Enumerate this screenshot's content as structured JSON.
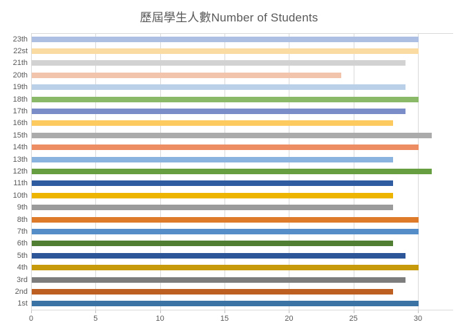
{
  "chart_data": {
    "type": "bar",
    "orientation": "horizontal",
    "title": "歷屆學生人數Number of Students",
    "categories": [
      "1st",
      "2nd",
      "3rd",
      "4th",
      "5th",
      "6th",
      "7th",
      "8th",
      "9th",
      "10th",
      "11th",
      "12th",
      "13th",
      "14th",
      "15th",
      "16th",
      "17th",
      "18th",
      "19th",
      "20th",
      "21th",
      "22st",
      "23th"
    ],
    "values": [
      30,
      28,
      29,
      30,
      29,
      28,
      30,
      30,
      28,
      28,
      28,
      31,
      28,
      30,
      31,
      28,
      29,
      30,
      29,
      24,
      29,
      30,
      30
    ],
    "bar_colors": [
      "#3C73A5",
      "#BE5F22",
      "#7D7D7D",
      "#C79A0B",
      "#2D5698",
      "#507E32",
      "#548DC8",
      "#DE7B2B",
      "#9B9B9B",
      "#EDB500",
      "#2F5BA0",
      "#669E41",
      "#8AB4DF",
      "#EC8D63",
      "#ABABAB",
      "#FCCA5F",
      "#7B8DC9",
      "#8ABA68",
      "#BACFE8",
      "#F2C4AC",
      "#D2D2D2",
      "#FADCA2",
      "#AEBFE4"
    ],
    "x_ticks": [
      0,
      5,
      10,
      15,
      20,
      25,
      30
    ],
    "xlim": [
      0,
      33
    ],
    "category_order_on_screen": "first category at bottom",
    "grid": true,
    "legend": "none",
    "xlabel": "",
    "ylabel": "",
    "colors": {
      "grid_color": "#D9D9D9",
      "axis_line_color": "#D9D9D9",
      "tick_color": "#BFBFBF",
      "label_color": "#595959",
      "title_color": "#595959",
      "background": "#FFFFFF"
    }
  }
}
